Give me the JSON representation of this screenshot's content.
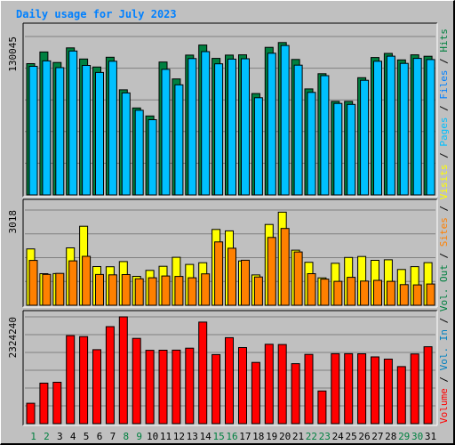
{
  "chart_data": {
    "type": "bar",
    "title": "Daily usage for July 2023",
    "categories": [
      "1",
      "2",
      "3",
      "4",
      "5",
      "6",
      "7",
      "8",
      "9",
      "10",
      "11",
      "12",
      "13",
      "14",
      "15",
      "16",
      "17",
      "18",
      "19",
      "20",
      "21",
      "22",
      "23",
      "24",
      "25",
      "26",
      "27",
      "28",
      "29",
      "30",
      "31"
    ],
    "weekend_days": [
      "1",
      "2",
      "8",
      "9",
      "15",
      "16",
      "22",
      "23",
      "29",
      "30"
    ],
    "panels": [
      {
        "name": "top",
        "max_label": "130045",
        "max_value": 130045,
        "series": [
          {
            "name": "Hits",
            "color": "#008040",
            "values": [
              107760,
              117330,
              108680,
              120700,
              111560,
              104990,
              113000,
              86300,
              71400,
              64800,
              109100,
              95200,
              114800,
              123000,
              112100,
              114800,
              115000,
              83200,
              121100,
              125100,
              111200,
              87000,
              99500,
              76800,
              76800,
              96200,
              112800,
              116200,
              110800,
              115000,
              113800
            ]
          },
          {
            "name": "Files",
            "color": "#00c0ff",
            "values": [
              105560,
              110020,
              104500,
              118100,
              106300,
              100500,
              109700,
              83700,
              69500,
              61700,
              103100,
              90400,
              111900,
              117600,
              107600,
              111500,
              111800,
              79800,
              116300,
              122700,
              106500,
              84200,
              97900,
              75100,
              74300,
              94100,
              109700,
              113900,
              108000,
              112100,
              111100
            ]
          }
        ]
      },
      {
        "name": "middle",
        "max_label": "3018",
        "max_value": 3018,
        "series": [
          {
            "name": "Pages",
            "color": "#ffff00",
            "values": [
              1785,
              1000,
              1003,
              1820,
              2504,
              1228,
              1220,
              1385,
              918,
              1106,
              1234,
              1519,
              1296,
              1347,
              2402,
              2357,
              1404,
              961,
              2561,
              2950,
              1747,
              1363,
              870,
              1330,
              1516,
              1545,
              1424,
              1440,
              1134,
              1223,
              1351
            ]
          },
          {
            "name": "Sites",
            "color": "#ff8000",
            "values": [
              1421,
              980,
              1009,
              1407,
              1552,
              977,
              964,
              972,
              840,
              871,
              927,
              915,
              871,
              995,
              2007,
              1808,
              1427,
              896,
              2148,
              2433,
              1690,
              1002,
              830,
              759,
              885,
              767,
              791,
              758,
              653,
              645,
              674
            ]
          }
        ]
      },
      {
        "name": "bottom",
        "max_label": "2324240",
        "max_value": 2324240,
        "series": [
          {
            "name": "Volume",
            "color": "#ff0000",
            "values": [
              444500,
              881500,
              900500,
              1915700,
              1895200,
              1610300,
              2112000,
              2324240,
              1855500,
              1596900,
              1598400,
              1599200,
              1641900,
              2210400,
              1503900,
              1871800,
              1655800,
              1331600,
              1727700,
              1721700,
              1306000,
              1506000,
              711500,
              1522800,
              1523100,
              1520700,
              1452600,
              1405000,
              1240800,
              1515900,
              1674200
            ]
          }
        ]
      }
    ],
    "legend": [
      {
        "label": "Volume",
        "color": "#ff0000"
      },
      {
        "label": " / ",
        "color": "#000000"
      },
      {
        "label": "Vol. In",
        "color": "#0080c0"
      },
      {
        "label": " / ",
        "color": "#000000"
      },
      {
        "label": "Vol. Out",
        "color": "#008040"
      },
      {
        "label": " / ",
        "color": "#000000"
      },
      {
        "label": "Sites",
        "color": "#ff8000"
      },
      {
        "label": " / ",
        "color": "#000000"
      },
      {
        "label": "Visits",
        "color": "#ffff00"
      },
      {
        "label": " / ",
        "color": "#000000"
      },
      {
        "label": "Pages",
        "color": "#00c0ff"
      },
      {
        "label": " / ",
        "color": "#000000"
      },
      {
        "label": "Files",
        "color": "#0080ff"
      },
      {
        "label": " / ",
        "color": "#000000"
      },
      {
        "label": "Hits",
        "color": "#008040"
      }
    ],
    "colors": {
      "title": "#0080ff",
      "weekday_label": "#000000",
      "weekend_label": "#008040",
      "background": "#c0c0c0",
      "gridline": "#808080"
    }
  }
}
